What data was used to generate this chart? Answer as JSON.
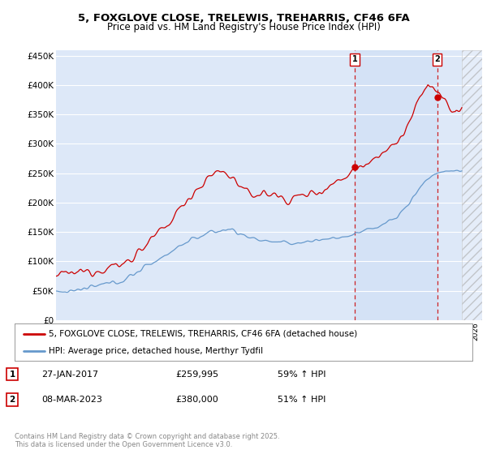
{
  "title_line1": "5, FOXGLOVE CLOSE, TRELEWIS, TREHARRIS, CF46 6FA",
  "title_line2": "Price paid vs. HM Land Registry's House Price Index (HPI)",
  "ylim": [
    0,
    460000
  ],
  "yticks": [
    0,
    50000,
    100000,
    150000,
    200000,
    250000,
    300000,
    350000,
    400000,
    450000
  ],
  "ytick_labels": [
    "£0",
    "£50K",
    "£100K",
    "£150K",
    "£200K",
    "£250K",
    "£300K",
    "£350K",
    "£400K",
    "£450K"
  ],
  "bg_color": "#dde8f8",
  "grid_color": "#ffffff",
  "future_hatch_color": "#bbbbbb",
  "red_color": "#cc0000",
  "blue_color": "#6699cc",
  "highlight_color": "#ddeeff",
  "marker1_year": 2017.08,
  "marker1_value": 259995,
  "marker2_year": 2023.17,
  "marker2_value": 380000,
  "legend_label_red": "5, FOXGLOVE CLOSE, TRELEWIS, TREHARRIS, CF46 6FA (detached house)",
  "legend_label_blue": "HPI: Average price, detached house, Merthyr Tydfil",
  "annotation1_label": "1",
  "annotation1_date": "27-JAN-2017",
  "annotation1_price": "£259,995",
  "annotation1_hpi": "59% ↑ HPI",
  "annotation2_label": "2",
  "annotation2_date": "08-MAR-2023",
  "annotation2_price": "£380,000",
  "annotation2_hpi": "51% ↑ HPI",
  "footer_text": "Contains HM Land Registry data © Crown copyright and database right 2025.\nThis data is licensed under the Open Government Licence v3.0.",
  "xmin": 1995,
  "xmax": 2026.5,
  "future_start": 2025.0
}
